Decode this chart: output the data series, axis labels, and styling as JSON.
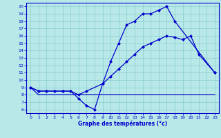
{
  "xlabel": "Graphe des températures (°c)",
  "bg_color": "#b8e8e8",
  "grid_color": "#88cccc",
  "line_color": "#0000cc",
  "xlim": [
    -0.5,
    23.5
  ],
  "ylim": [
    5.5,
    20.5
  ],
  "xticks": [
    0,
    1,
    2,
    3,
    4,
    5,
    6,
    7,
    8,
    9,
    10,
    11,
    12,
    13,
    14,
    15,
    16,
    17,
    18,
    19,
    20,
    21,
    22,
    23
  ],
  "yticks": [
    6,
    7,
    8,
    9,
    10,
    11,
    12,
    13,
    14,
    15,
    16,
    17,
    18,
    19,
    20
  ],
  "line1_x": [
    0,
    1,
    2,
    3,
    4,
    5,
    6,
    7,
    8,
    9,
    10,
    11,
    12,
    13,
    14,
    15,
    16,
    17,
    18,
    23
  ],
  "line1_y": [
    9.0,
    8.5,
    8.5,
    8.5,
    8.5,
    8.5,
    7.5,
    6.5,
    6.0,
    9.5,
    12.5,
    15.0,
    17.5,
    18.0,
    19.0,
    19.0,
    19.5,
    20.0,
    18.0,
    11.0
  ],
  "line2_x": [
    0,
    1,
    2,
    3,
    4,
    5,
    6,
    7,
    9,
    10,
    11,
    12,
    13,
    14,
    15,
    16,
    17,
    18,
    19,
    20,
    21,
    23
  ],
  "line2_y": [
    9.0,
    8.5,
    8.5,
    8.5,
    8.5,
    8.5,
    8.0,
    8.5,
    9.5,
    10.5,
    11.5,
    12.5,
    13.5,
    14.5,
    15.0,
    15.5,
    16.0,
    15.8,
    15.5,
    16.0,
    13.5,
    11.0
  ],
  "line3_x": [
    0,
    1,
    2,
    3,
    4,
    5,
    6,
    7,
    8,
    9,
    10,
    11,
    12,
    13,
    14,
    15,
    16,
    17,
    18,
    19,
    20,
    21,
    22,
    23
  ],
  "line3_y": [
    9.0,
    8.0,
    8.0,
    8.0,
    8.0,
    8.0,
    8.0,
    8.0,
    8.0,
    8.0,
    8.0,
    8.0,
    8.0,
    8.0,
    8.0,
    8.0,
    8.0,
    8.0,
    8.0,
    8.0,
    8.0,
    8.0,
    8.0,
    8.0
  ]
}
